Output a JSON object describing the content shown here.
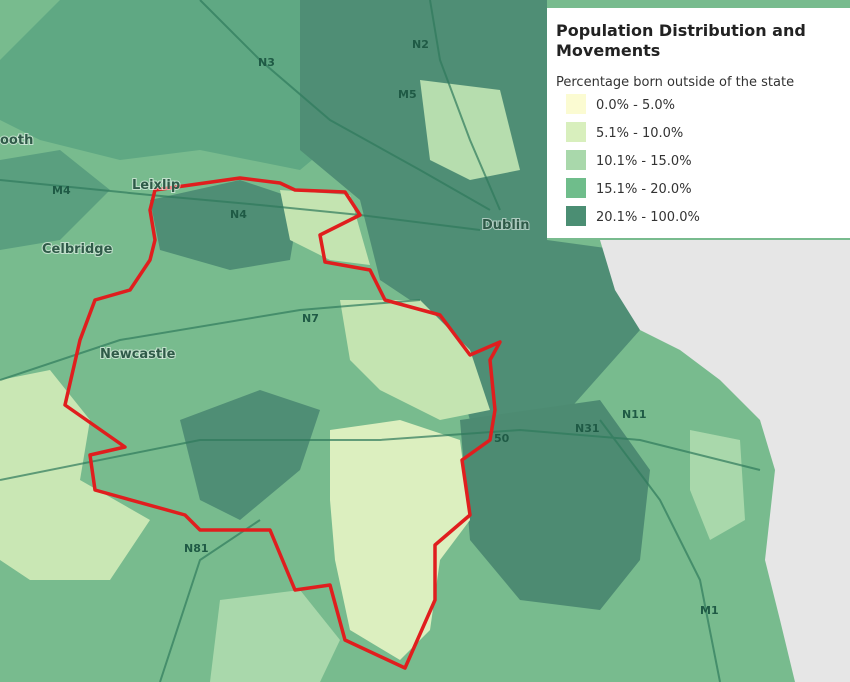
{
  "legend": {
    "title_lines": [
      "Population Distribution and",
      "Movements"
    ],
    "subtitle": "Percentage born outside of the state",
    "entries": [
      {
        "label": "0.0% - 5.0%",
        "color": "#fbfbd2"
      },
      {
        "label": "5.1% - 10.0%",
        "color": "#d8efbd"
      },
      {
        "label": "10.1% - 15.0%",
        "color": "#a9d8ab"
      },
      {
        "label": "15.1% - 20.0%",
        "color": "#6fbd8b"
      },
      {
        "label": "20.1% - 100.0%",
        "color": "#4b8e73"
      }
    ]
  },
  "places": [
    "Dublin",
    "Leixlip",
    "Celbridge",
    "Newcastle",
    "ooth"
  ],
  "roads": [
    "N2",
    "N3",
    "M5",
    "N4",
    "N7",
    "N81",
    "N11",
    "N31",
    "M1",
    "M4",
    "50"
  ]
}
